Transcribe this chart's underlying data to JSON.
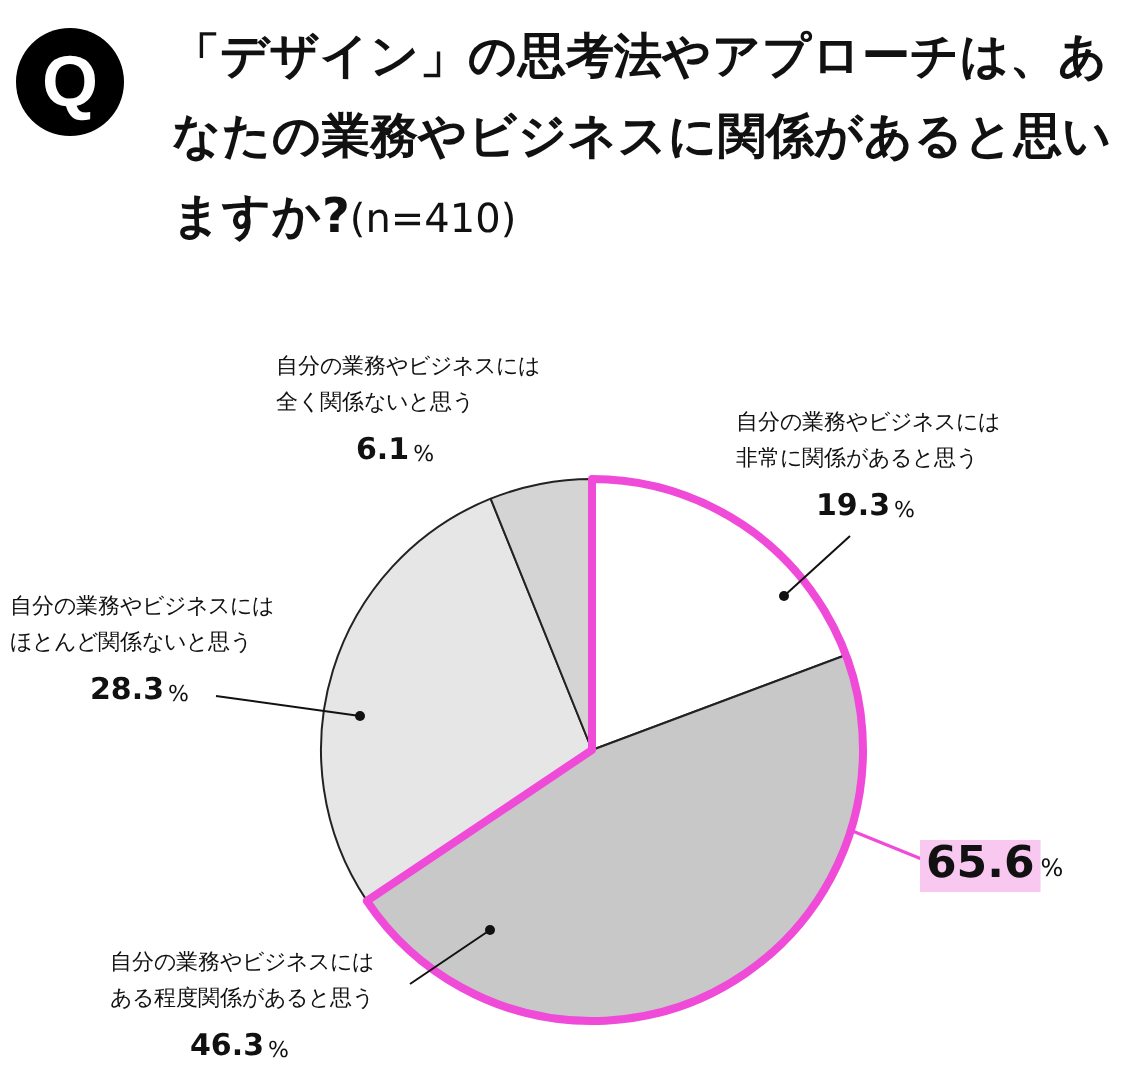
{
  "chart_data": {
    "type": "pie",
    "title": "「デザイン」の思考法やアプローチは、あなたの業務やビジネスに関係があると思いますか?",
    "subtitle": "(n=410)",
    "categories": [
      "自分の業務やビジネスには非常に関係があると思う",
      "自分の業務やビジネスにはある程度関係があると思う",
      "自分の業務やビジネスにはほとんど関係ないと思う",
      "自分の業務やビジネスには全く関係ないと思う"
    ],
    "values": [
      19.3,
      46.3,
      28.3,
      6.1
    ],
    "value_labels": [
      "19.3%",
      "46.3%",
      "28.3%",
      "6.1%"
    ],
    "colors": [
      "#ffffff",
      "#c8c8c8",
      "#e6e6e6",
      "#d4d4d4"
    ],
    "annotations": [
      "Q",
      "65.6%"
    ],
    "legend": false
  }
}
